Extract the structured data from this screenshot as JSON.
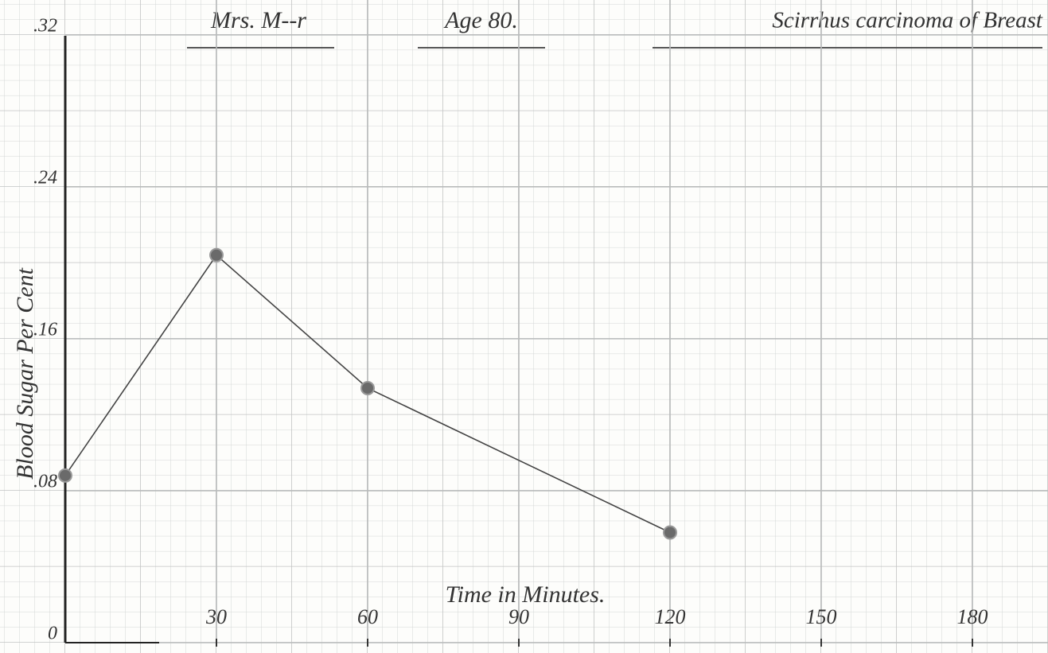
{
  "chart_data": {
    "type": "line",
    "title": "Mrs. M--r",
    "subtitle": "Age 80.",
    "annotation": "Scirrhus carcinoma of Breast",
    "y_label": "Blood Sugar Per Cent",
    "x_label": "Time in Minutes.",
    "x": [
      0,
      30,
      60,
      120
    ],
    "series": [
      {
        "color": "#444444",
        "values": [
          0.088,
          0.204,
          0.134,
          0.058
        ]
      }
    ],
    "xlim": [
      0,
      195
    ],
    "ylim": [
      0,
      0.34
    ],
    "xticks": [
      30,
      60,
      90,
      120,
      150,
      180
    ],
    "yticks": [
      0,
      {
        "value": 0.08,
        "label": ".08"
      },
      {
        "value": 0.16,
        "label": ".16"
      },
      {
        "value": 0.24,
        "label": ".24"
      },
      {
        "value": 0.32,
        "label": ".32"
      }
    ],
    "grid": true
  }
}
